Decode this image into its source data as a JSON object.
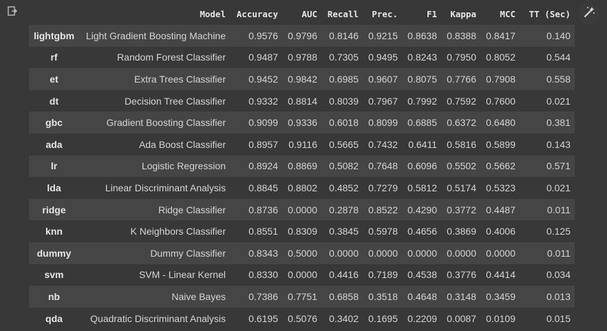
{
  "columns": [
    "",
    "Model",
    "Accuracy",
    "AUC",
    "Recall",
    "Prec.",
    "F1",
    "Kappa",
    "MCC",
    "TT (Sec)"
  ],
  "rows": [
    {
      "id": "lightgbm",
      "model": "Light Gradient Boosting Machine",
      "accuracy": "0.9576",
      "auc": "0.9796",
      "recall": "0.8146",
      "prec": "0.9215",
      "f1": "0.8638",
      "kappa": "0.8388",
      "mcc": "0.8417",
      "tt": "0.140"
    },
    {
      "id": "rf",
      "model": "Random Forest Classifier",
      "accuracy": "0.9487",
      "auc": "0.9788",
      "recall": "0.7305",
      "prec": "0.9495",
      "f1": "0.8243",
      "kappa": "0.7950",
      "mcc": "0.8052",
      "tt": "0.544"
    },
    {
      "id": "et",
      "model": "Extra Trees Classifier",
      "accuracy": "0.9452",
      "auc": "0.9842",
      "recall": "0.6985",
      "prec": "0.9607",
      "f1": "0.8075",
      "kappa": "0.7766",
      "mcc": "0.7908",
      "tt": "0.558"
    },
    {
      "id": "dt",
      "model": "Decision Tree Classifier",
      "accuracy": "0.9332",
      "auc": "0.8814",
      "recall": "0.8039",
      "prec": "0.7967",
      "f1": "0.7992",
      "kappa": "0.7592",
      "mcc": "0.7600",
      "tt": "0.021"
    },
    {
      "id": "gbc",
      "model": "Gradient Boosting Classifier",
      "accuracy": "0.9099",
      "auc": "0.9336",
      "recall": "0.6018",
      "prec": "0.8099",
      "f1": "0.6885",
      "kappa": "0.6372",
      "mcc": "0.6480",
      "tt": "0.381"
    },
    {
      "id": "ada",
      "model": "Ada Boost Classifier",
      "accuracy": "0.8957",
      "auc": "0.9116",
      "recall": "0.5665",
      "prec": "0.7432",
      "f1": "0.6411",
      "kappa": "0.5816",
      "mcc": "0.5899",
      "tt": "0.143"
    },
    {
      "id": "lr",
      "model": "Logistic Regression",
      "accuracy": "0.8924",
      "auc": "0.8869",
      "recall": "0.5082",
      "prec": "0.7648",
      "f1": "0.6096",
      "kappa": "0.5502",
      "mcc": "0.5662",
      "tt": "0.571"
    },
    {
      "id": "lda",
      "model": "Linear Discriminant Analysis",
      "accuracy": "0.8845",
      "auc": "0.8802",
      "recall": "0.4852",
      "prec": "0.7279",
      "f1": "0.5812",
      "kappa": "0.5174",
      "mcc": "0.5323",
      "tt": "0.021"
    },
    {
      "id": "ridge",
      "model": "Ridge Classifier",
      "accuracy": "0.8736",
      "auc": "0.0000",
      "recall": "0.2878",
      "prec": "0.8522",
      "f1": "0.4290",
      "kappa": "0.3772",
      "mcc": "0.4487",
      "tt": "0.011"
    },
    {
      "id": "knn",
      "model": "K Neighbors Classifier",
      "accuracy": "0.8551",
      "auc": "0.8309",
      "recall": "0.3845",
      "prec": "0.5978",
      "f1": "0.4656",
      "kappa": "0.3869",
      "mcc": "0.4006",
      "tt": "0.125"
    },
    {
      "id": "dummy",
      "model": "Dummy Classifier",
      "accuracy": "0.8343",
      "auc": "0.5000",
      "recall": "0.0000",
      "prec": "0.0000",
      "f1": "0.0000",
      "kappa": "0.0000",
      "mcc": "0.0000",
      "tt": "0.011"
    },
    {
      "id": "svm",
      "model": "SVM - Linear Kernel",
      "accuracy": "0.8330",
      "auc": "0.0000",
      "recall": "0.4416",
      "prec": "0.7189",
      "f1": "0.4538",
      "kappa": "0.3776",
      "mcc": "0.4414",
      "tt": "0.034"
    },
    {
      "id": "nb",
      "model": "Naive Bayes",
      "accuracy": "0.7386",
      "auc": "0.7751",
      "recall": "0.6858",
      "prec": "0.3518",
      "f1": "0.4648",
      "kappa": "0.3148",
      "mcc": "0.3459",
      "tt": "0.013"
    },
    {
      "id": "qda",
      "model": "Quadratic Discriminant Analysis",
      "accuracy": "0.6195",
      "auc": "0.5076",
      "recall": "0.3402",
      "prec": "0.1695",
      "f1": "0.2209",
      "kappa": "0.0087",
      "mcc": "0.0109",
      "tt": "0.015"
    }
  ],
  "icons": {
    "output_icon": "output-redirect-icon",
    "magic_icon": "magic-wand-icon"
  },
  "colors": {
    "background": "#383838",
    "striped_row": "#454545",
    "text": "#d5d5d5"
  }
}
